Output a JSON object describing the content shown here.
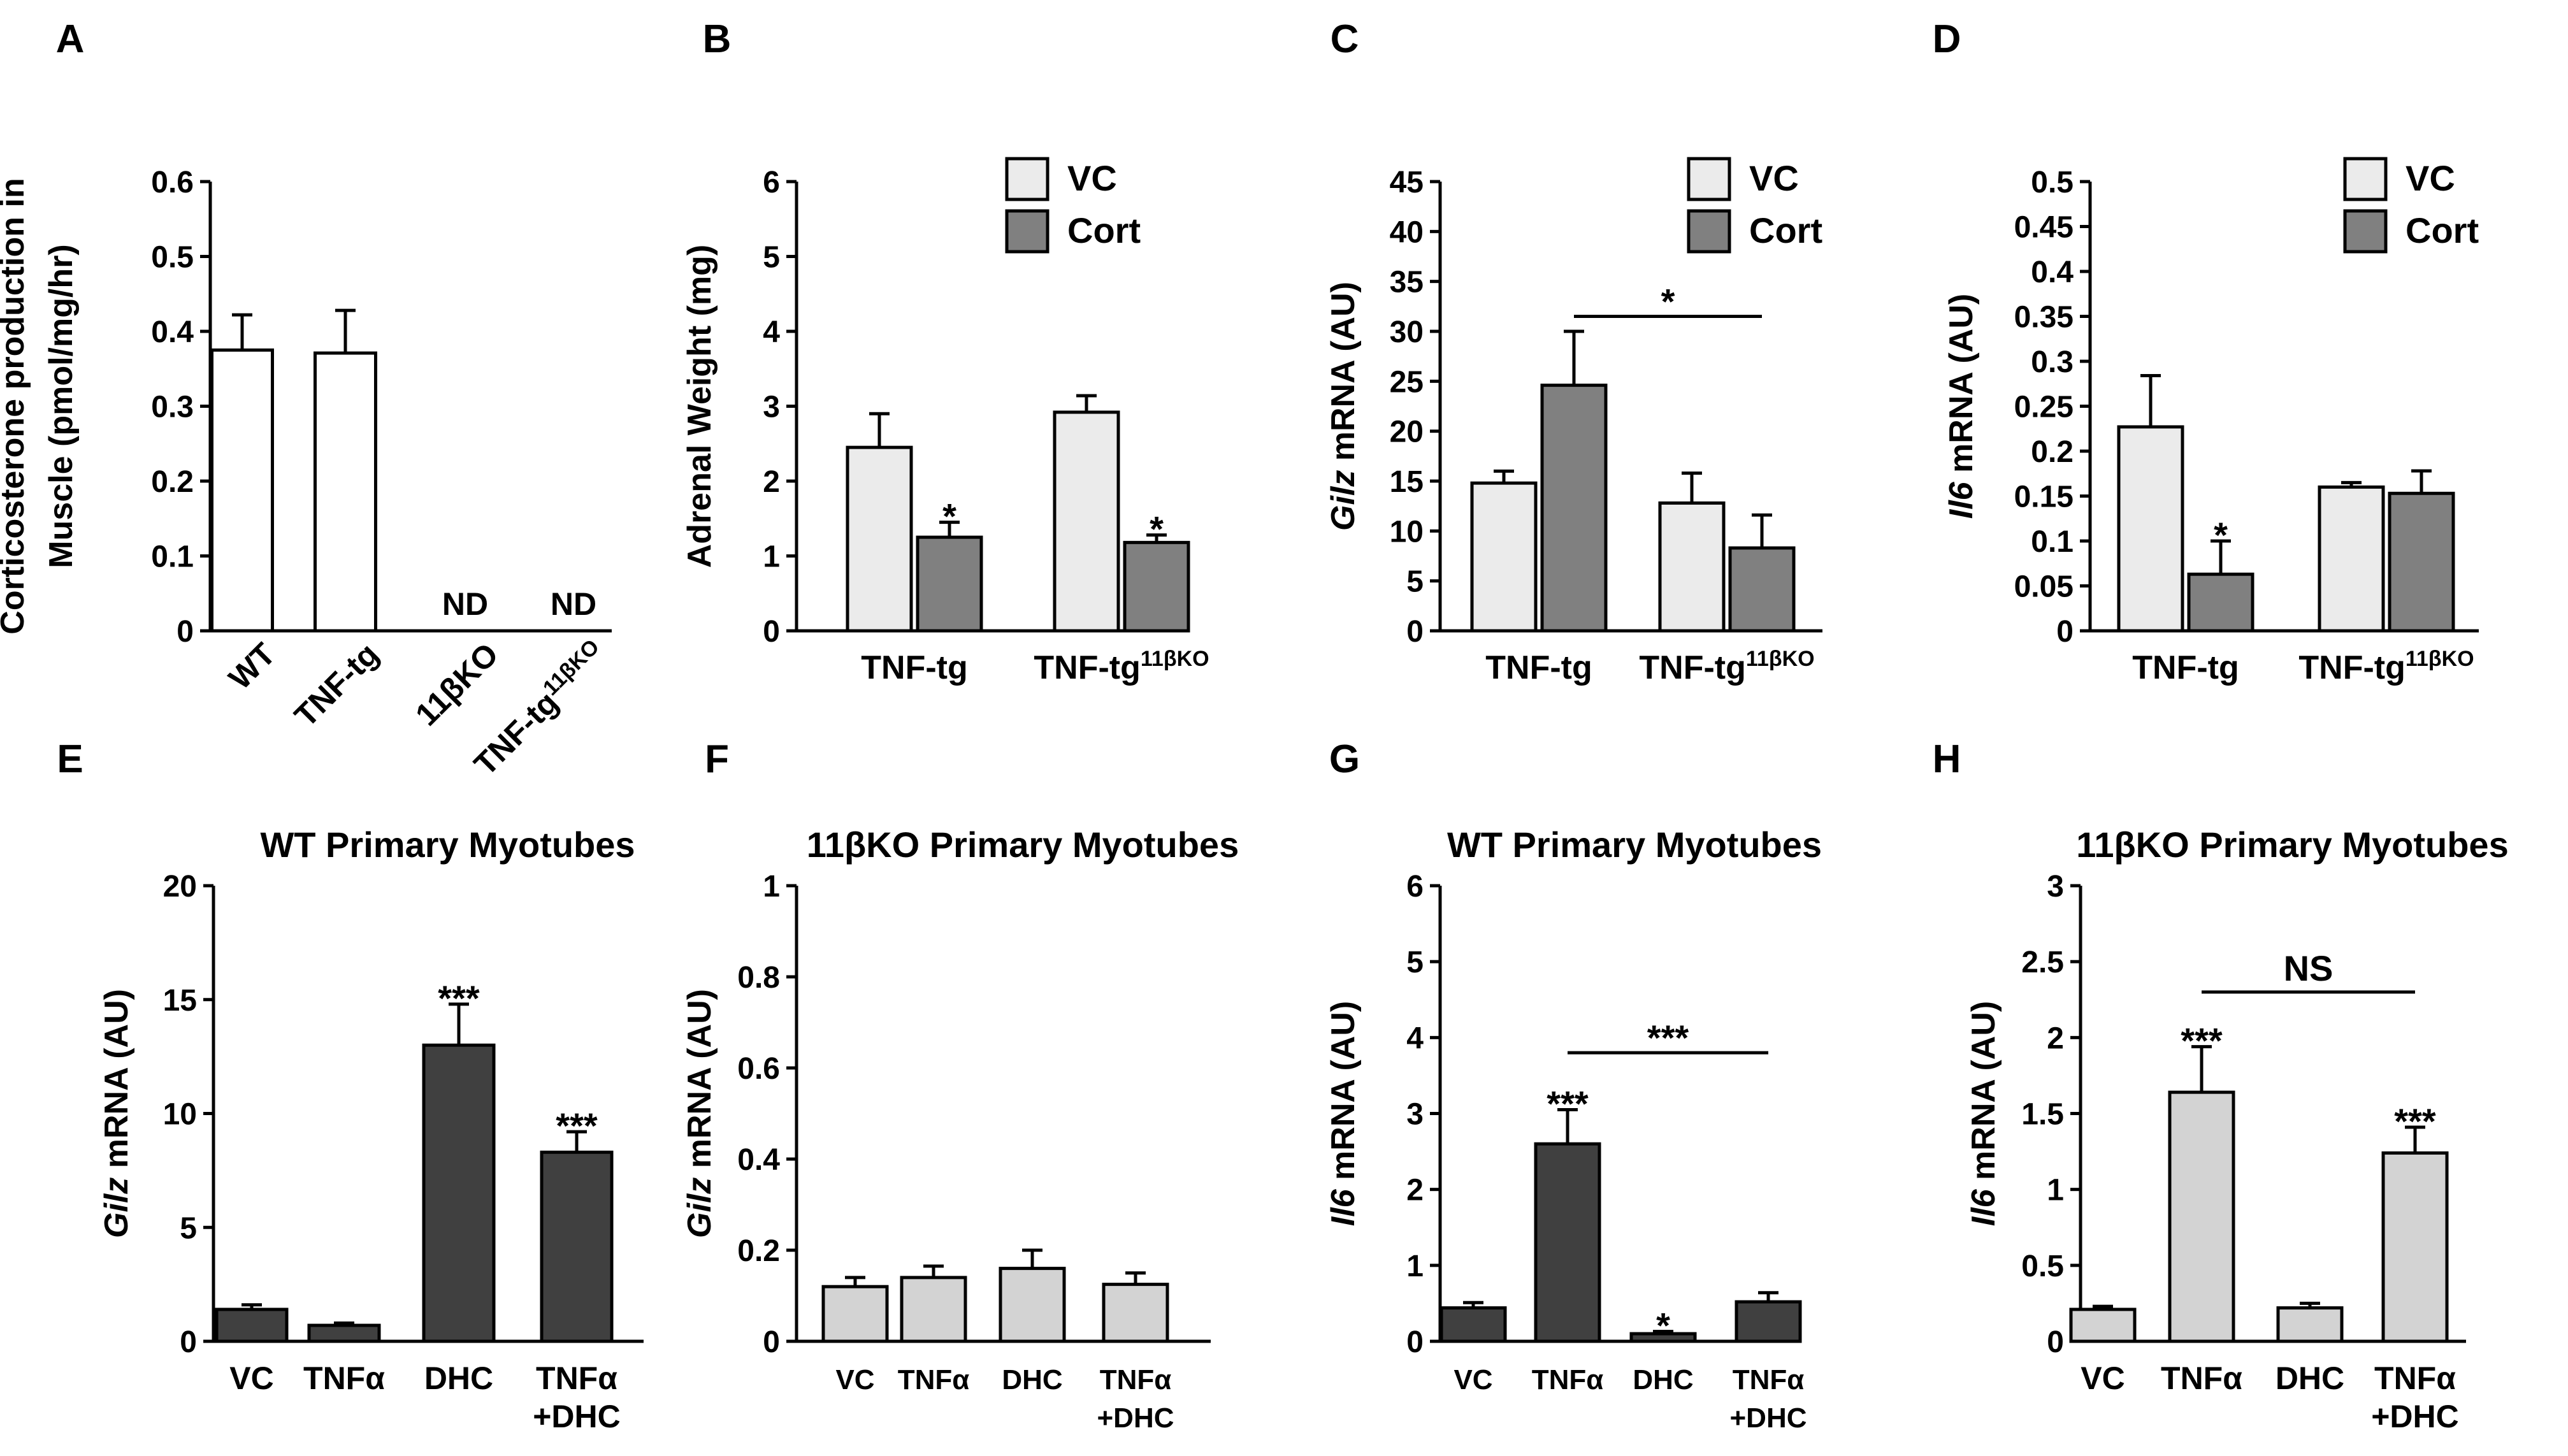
{
  "colors": {
    "white": "#ffffff",
    "light": "#ebebeb",
    "gray": "#808080",
    "dark": "#404040",
    "pale": "#d3d3d3"
  },
  "chart_data": [
    {
      "panel": "A",
      "type": "bar",
      "title": "",
      "ylabel": [
        "Corticosterone production in",
        "Muscle (pmol/mg/hr)"
      ],
      "ylim": [
        0,
        0.6
      ],
      "yticks": [
        "0",
        "0.1",
        "0.2",
        "0.3",
        "0.4",
        "0.5",
        "0.6"
      ],
      "groups": [
        {
          "label": "WT",
          "bars": [
            {
              "value": 0.375,
              "error": 0.047,
              "color": "white"
            }
          ]
        },
        {
          "label": "TNF-tg",
          "bars": [
            {
              "value": 0.371,
              "error": 0.057,
              "color": "white"
            }
          ]
        },
        {
          "label": "11βKO",
          "bars": [
            {
              "value": 0,
              "color": "white",
              "annotation": "ND"
            }
          ]
        },
        {
          "label": "TNF-tg",
          "sup": "11βKO",
          "bars": [
            {
              "value": 0,
              "color": "white",
              "annotation": "ND"
            }
          ]
        }
      ],
      "legend": [],
      "brackets": []
    },
    {
      "panel": "B",
      "type": "bar",
      "title": "",
      "ylabel": [
        "Adrenal Weight (mg)"
      ],
      "ylim": [
        0,
        6
      ],
      "yticks": [
        "0",
        "1",
        "2",
        "3",
        "4",
        "5",
        "6"
      ],
      "groups": [
        {
          "label": "TNF-tg",
          "bars": [
            {
              "value": 2.45,
              "error": 0.45,
              "color": "light"
            },
            {
              "value": 1.25,
              "error": 0.2,
              "color": "gray",
              "annotation": "*"
            }
          ]
        },
        {
          "label": "TNF-tg",
          "sup": "11βKO",
          "bars": [
            {
              "value": 2.92,
              "error": 0.22,
              "color": "light"
            },
            {
              "value": 1.18,
              "error": 0.1,
              "color": "gray",
              "annotation": "*"
            }
          ]
        }
      ],
      "legend": [
        {
          "label": "VC",
          "color": "light"
        },
        {
          "label": "Cort",
          "color": "gray"
        }
      ],
      "brackets": []
    },
    {
      "panel": "C",
      "type": "bar",
      "title": "",
      "ylabel_italic": "Gilz",
      "ylabel_rest": " mRNA (AU)",
      "ylim": [
        0,
        45
      ],
      "yticks": [
        "0",
        "5",
        "10",
        "15",
        "20",
        "25",
        "30",
        "35",
        "40",
        "45"
      ],
      "groups": [
        {
          "label": "TNF-tg",
          "bars": [
            {
              "value": 14.8,
              "error": 1.2,
              "color": "light"
            },
            {
              "value": 24.6,
              "error": 5.4,
              "color": "gray"
            }
          ]
        },
        {
          "label": "TNF-tg",
          "sup": "11βKO",
          "bars": [
            {
              "value": 12.8,
              "error": 3.0,
              "color": "light"
            },
            {
              "value": 8.3,
              "error": 3.3,
              "color": "gray"
            }
          ]
        }
      ],
      "legend": [
        {
          "label": "VC",
          "color": "light"
        },
        {
          "label": "Cort",
          "color": "gray"
        }
      ],
      "brackets": [
        {
          "from": [
            0,
            1
          ],
          "to": [
            1,
            1
          ],
          "y": 31.5,
          "label": "*"
        }
      ]
    },
    {
      "panel": "D",
      "type": "bar",
      "title": "",
      "ylabel_italic": "Il6",
      "ylabel_rest": " mRNA (AU)",
      "ylim": [
        0,
        0.5
      ],
      "yticks": [
        "0",
        "0.05",
        "0.1",
        "0.15",
        "0.2",
        "0.25",
        "0.3",
        "0.35",
        "0.4",
        "0.45",
        "0.5"
      ],
      "groups": [
        {
          "label": "TNF-tg",
          "bars": [
            {
              "value": 0.227,
              "error": 0.057,
              "color": "light"
            },
            {
              "value": 0.063,
              "error": 0.037,
              "color": "gray",
              "annotation": "*"
            }
          ]
        },
        {
          "label": "TNF-tg",
          "sup": "11βKO",
          "bars": [
            {
              "value": 0.16,
              "error": 0.005,
              "color": "light"
            },
            {
              "value": 0.153,
              "error": 0.025,
              "color": "gray"
            }
          ]
        }
      ],
      "legend": [
        {
          "label": "VC",
          "color": "light"
        },
        {
          "label": "Cort",
          "color": "gray"
        }
      ],
      "brackets": []
    },
    {
      "panel": "E",
      "type": "bar",
      "title": "WT Primary Myotubes",
      "ylabel_italic": "Gilz",
      "ylabel_rest": " mRNA (AU)",
      "ylim": [
        0,
        20
      ],
      "yticks": [
        "0",
        "5",
        "10",
        "15",
        "20"
      ],
      "groups": [
        {
          "label": "VC",
          "bars": [
            {
              "value": 1.4,
              "error": 0.2,
              "color": "dark"
            }
          ]
        },
        {
          "label": "TNFα",
          "bars": [
            {
              "value": 0.7,
              "error": 0.1,
              "color": "dark"
            }
          ]
        },
        {
          "label": "DHC",
          "bars": [
            {
              "value": 13.0,
              "error": 1.8,
              "color": "dark",
              "annotation": "***"
            }
          ]
        },
        {
          "label": "TNFα",
          "label2": "+DHC",
          "bars": [
            {
              "value": 8.3,
              "error": 0.9,
              "color": "dark",
              "annotation": "***"
            }
          ]
        }
      ],
      "legend": [],
      "brackets": []
    },
    {
      "panel": "F",
      "type": "bar",
      "title": "11βKO Primary Myotubes",
      "ylabel_italic": "Gilz",
      "ylabel_rest": " mRNA (AU)",
      "ylim": [
        0,
        1
      ],
      "yticks": [
        "0",
        "0.2",
        "0.4",
        "0.6",
        "0.8",
        "1"
      ],
      "groups": [
        {
          "label": "VC",
          "bars": [
            {
              "value": 0.12,
              "error": 0.02,
              "color": "pale"
            }
          ]
        },
        {
          "label": "TNFα",
          "bars": [
            {
              "value": 0.14,
              "error": 0.025,
              "color": "pale"
            }
          ]
        },
        {
          "label": "DHC",
          "bars": [
            {
              "value": 0.16,
              "error": 0.04,
              "color": "pale"
            }
          ]
        },
        {
          "label": "TNFα",
          "label2": "+DHC",
          "bars": [
            {
              "value": 0.125,
              "error": 0.025,
              "color": "pale"
            }
          ]
        }
      ],
      "legend": [],
      "brackets": []
    },
    {
      "panel": "G",
      "type": "bar",
      "title": "WT Primary Myotubes",
      "ylabel_italic": "Il6",
      "ylabel_rest": " mRNA (AU)",
      "ylim": [
        0,
        6
      ],
      "yticks": [
        "0",
        "1",
        "2",
        "3",
        "4",
        "5",
        "6"
      ],
      "groups": [
        {
          "label": "VC",
          "bars": [
            {
              "value": 0.44,
              "error": 0.07,
              "color": "dark"
            }
          ]
        },
        {
          "label": "TNFα",
          "bars": [
            {
              "value": 2.6,
              "error": 0.45,
              "color": "dark",
              "annotation": "***"
            }
          ]
        },
        {
          "label": "DHC",
          "bars": [
            {
              "value": 0.1,
              "error": 0.03,
              "color": "dark",
              "annotation": "*"
            }
          ]
        },
        {
          "label": "TNFα",
          "label2": "+DHC",
          "bars": [
            {
              "value": 0.52,
              "error": 0.12,
              "color": "dark"
            }
          ]
        }
      ],
      "legend": [],
      "brackets": [
        {
          "from": [
            1,
            0
          ],
          "to": [
            3,
            0
          ],
          "y": 3.8,
          "label": "***"
        }
      ]
    },
    {
      "panel": "H",
      "type": "bar",
      "title": "11βKO Primary Myotubes",
      "ylabel_italic": "Il6",
      "ylabel_rest": " mRNA (AU)",
      "ylim": [
        0,
        3
      ],
      "yticks": [
        "0",
        "0.5",
        "1",
        "1.5",
        "2",
        "2.5",
        "3"
      ],
      "groups": [
        {
          "label": "VC",
          "bars": [
            {
              "value": 0.21,
              "error": 0.02,
              "color": "pale"
            }
          ]
        },
        {
          "label": "TNFα",
          "bars": [
            {
              "value": 1.64,
              "error": 0.3,
              "color": "pale",
              "annotation": "***"
            }
          ]
        },
        {
          "label": "DHC",
          "bars": [
            {
              "value": 0.22,
              "error": 0.03,
              "color": "pale"
            }
          ]
        },
        {
          "label": "TNFα",
          "label2": "+DHC",
          "bars": [
            {
              "value": 1.24,
              "error": 0.17,
              "color": "pale",
              "annotation": "***"
            }
          ]
        }
      ],
      "legend": [],
      "brackets": [
        {
          "from": [
            1,
            0
          ],
          "to": [
            3,
            0
          ],
          "y": 2.3,
          "label": "NS"
        }
      ]
    }
  ]
}
